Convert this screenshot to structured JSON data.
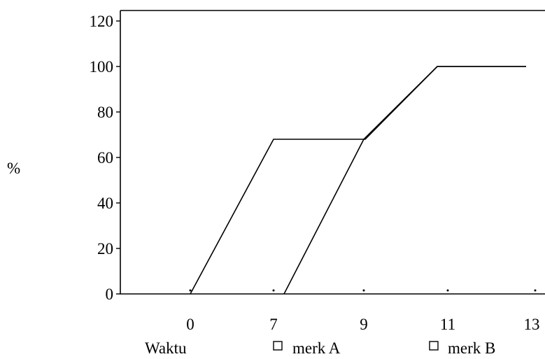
{
  "chart_data": {
    "type": "line",
    "title": "",
    "xlabel": "Waktu",
    "ylabel": "%",
    "x_tick_labels": [
      "0",
      "7",
      "9",
      "11",
      "13"
    ],
    "y_ticks": [
      0,
      20,
      40,
      60,
      80,
      100,
      120
    ],
    "ylim": [
      0,
      120
    ],
    "grid": false,
    "legend_position": "bottom",
    "legend_marker": "hollow-square",
    "series": [
      {
        "name": "merk A",
        "points": [
          {
            "x": "0",
            "y": 0
          },
          {
            "x": "7",
            "y": 68
          },
          {
            "x": "9",
            "y": 68
          },
          {
            "x": "11",
            "y": 100
          },
          {
            "x": "13",
            "y": 100
          }
        ]
      },
      {
        "name": "merk B",
        "points": [
          {
            "x": "7",
            "y": 0
          },
          {
            "x": "9",
            "y": 68
          },
          {
            "x": "11",
            "y": 100
          },
          {
            "x": "13",
            "y": 100
          }
        ]
      }
    ],
    "line_color": "#000000"
  }
}
